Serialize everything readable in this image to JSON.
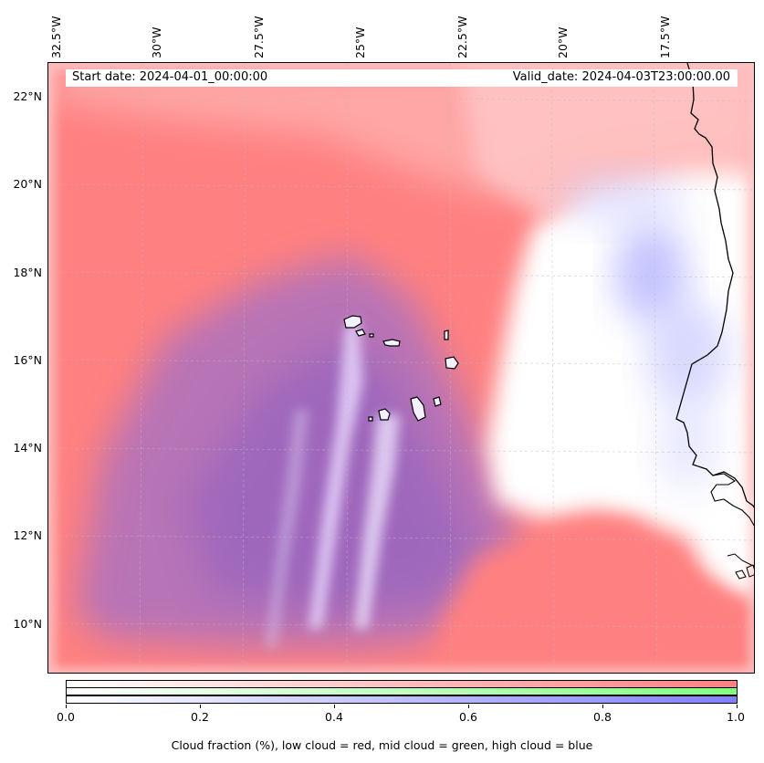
{
  "map": {
    "start_date": "Start date: 2024-04-01_00:00:00",
    "valid_date": "Valid_date: 2024-04-03T23:00:00.00",
    "lon_labels": [
      "32.5°W",
      "30°W",
      "27.5°W",
      "25°W",
      "22.5°W",
      "20°W",
      "17.5°W"
    ],
    "lat_labels": [
      "22°N",
      "20°N",
      "18°N",
      "16°N",
      "14°N",
      "12°N",
      "10°N"
    ],
    "colors": {
      "low_cloud": "#ff8080",
      "mid_cloud": "#80ff80",
      "high_cloud": "#8080ff",
      "coastline": "#000000"
    }
  },
  "colorbar": {
    "ticks": [
      "0.0",
      "0.2",
      "0.4",
      "0.6",
      "0.8",
      "1.0"
    ],
    "label": "Cloud fraction (%), low cloud = red, mid cloud = green, high cloud = blue"
  }
}
